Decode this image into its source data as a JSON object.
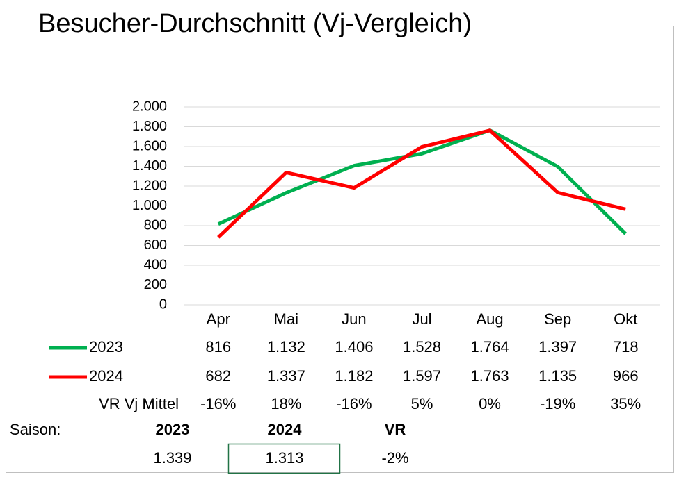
{
  "chart_data": {
    "type": "line",
    "title": "Besucher-Durchschnitt (Vj-Vergleich)",
    "categories": [
      "Apr",
      "Mai",
      "Jun",
      "Jul",
      "Aug",
      "Sep",
      "Okt"
    ],
    "series": [
      {
        "name": "2023",
        "color": "#00b050",
        "values": [
          816,
          1132,
          1406,
          1528,
          1764,
          1397,
          718
        ],
        "value_labels": [
          "816",
          "1.132",
          "1.406",
          "1.528",
          "1.764",
          "1.397",
          "718"
        ]
      },
      {
        "name": "2024",
        "color": "#ff0000",
        "values": [
          682,
          1337,
          1182,
          1597,
          1763,
          1135,
          966
        ],
        "value_labels": [
          "682",
          "1.337",
          "1.182",
          "1.597",
          "1.763",
          "1.135",
          "966"
        ]
      }
    ],
    "vr": {
      "name": "VR Vj Mittel",
      "values": [
        -16,
        18,
        -16,
        5,
        0,
        -19,
        35
      ],
      "value_labels": [
        "-16%",
        "18%",
        "-16%",
        "5%",
        "0%",
        "-19%",
        "35%"
      ]
    },
    "ylim": [
      0,
      2000
    ],
    "yticks": [
      0,
      200,
      400,
      600,
      800,
      {
        "value": 1000,
        "label": "1.000"
      },
      {
        "value": 1200,
        "label": "1.200"
      },
      {
        "value": 1400,
        "label": "1.400"
      },
      {
        "value": 1600,
        "label": "1.600"
      },
      {
        "value": 1800,
        "label": "1.800"
      },
      {
        "value": 2000,
        "label": "2.000"
      }
    ],
    "grid": true
  },
  "summary": {
    "label": "Saison:",
    "headers": [
      "2023",
      "2024",
      "VR"
    ],
    "values": [
      1339,
      1313,
      -2
    ],
    "value_labels": [
      "1.339",
      "1.313",
      "-2%"
    ]
  }
}
